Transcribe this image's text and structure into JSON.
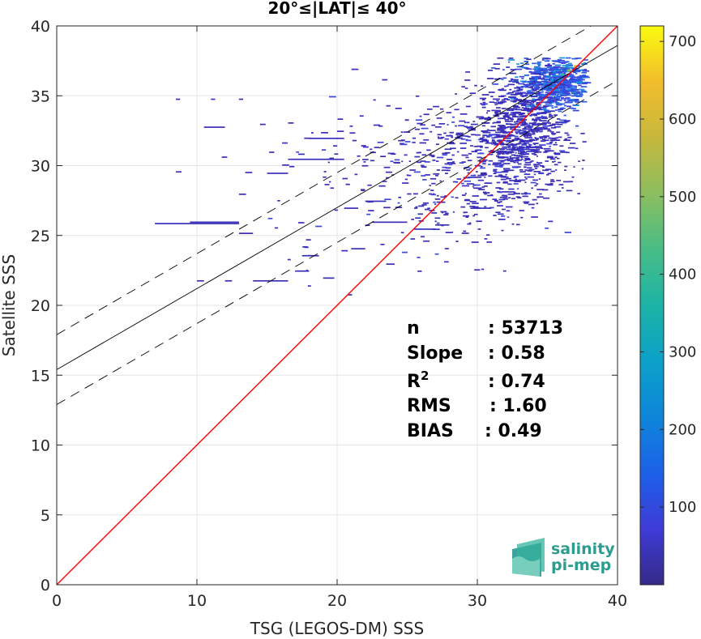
{
  "chart_data": {
    "type": "heatmap",
    "title": "20°≤|LAT|≤ 40°",
    "xlabel": "TSG (LEGOS-DM) SSS",
    "ylabel": "Satellite SSS",
    "xlim": [
      0,
      40
    ],
    "ylim": [
      0,
      40
    ],
    "xticks": [
      "0",
      "10",
      "20",
      "30",
      "40"
    ],
    "yticks": [
      "0",
      "5",
      "10",
      "15",
      "20",
      "25",
      "30",
      "35",
      "40"
    ],
    "grid": true,
    "colorbar": {
      "range": [
        0,
        720
      ],
      "ticks": [
        "100",
        "200",
        "300",
        "400",
        "500",
        "600",
        "700"
      ],
      "colormap": "parula"
    },
    "lines": {
      "identity": {
        "slope": 1,
        "intercept": 0,
        "color": "#ff0000"
      },
      "fit": {
        "slope": 0.58,
        "intercept": 15.4,
        "color": "#000000"
      },
      "fit_upper": {
        "slope": 0.58,
        "intercept": 17.9,
        "color": "#000000",
        "style": "dashed"
      },
      "fit_lower": {
        "slope": 0.58,
        "intercept": 12.9,
        "color": "#000000",
        "style": "dashed"
      }
    },
    "stats": [
      {
        "label": "n",
        "value": ": 53713"
      },
      {
        "label": "Slope",
        "value": ": 0.58"
      },
      {
        "label": "R",
        "sup": "2",
        "value": ": 0.74"
      },
      {
        "label": "RMS",
        "value": ": 1.60"
      },
      {
        "label": "BIAS",
        "value": ": 0.49"
      }
    ],
    "clusters": [
      {
        "cx": 35.5,
        "cy": 36.0,
        "sx": 1.3,
        "sy": 0.9,
        "n": 700,
        "hot": true
      },
      {
        "cx": 33.0,
        "cy": 32.5,
        "sx": 1.6,
        "sy": 2.0,
        "n": 750,
        "hot": false
      },
      {
        "cx": 30.0,
        "cy": 30.0,
        "sx": 3.0,
        "sy": 2.4,
        "n": 380,
        "hot": false
      },
      {
        "cx": 24.0,
        "cy": 29.0,
        "sx": 4.5,
        "sy": 3.2,
        "n": 160,
        "hot": false
      }
    ],
    "segments": [
      {
        "x": 7.0,
        "y": 25.9,
        "len": 6.0
      },
      {
        "x": 9.5,
        "y": 26.0,
        "len": 3.5
      },
      {
        "x": 13.0,
        "y": 25.2,
        "len": 1.0
      },
      {
        "x": 14.0,
        "y": 21.8,
        "len": 2.5
      },
      {
        "x": 19.0,
        "y": 22.0,
        "len": 0.8
      },
      {
        "x": 10.0,
        "y": 21.8,
        "len": 0.5
      },
      {
        "x": 12.0,
        "y": 21.8,
        "len": 0.5
      },
      {
        "x": 17.0,
        "y": 22.5,
        "len": 1.0
      },
      {
        "x": 17.5,
        "y": 23.6,
        "len": 1.2
      },
      {
        "x": 21.0,
        "y": 24.1,
        "len": 1.0
      },
      {
        "x": 16.5,
        "y": 30.5,
        "len": 4.0
      },
      {
        "x": 18.0,
        "y": 32.0,
        "len": 2.5
      },
      {
        "x": 8.5,
        "y": 34.8,
        "len": 0.3
      },
      {
        "x": 11.0,
        "y": 34.8,
        "len": 0.3
      },
      {
        "x": 13.0,
        "y": 34.8,
        "len": 0.3
      },
      {
        "x": 10.5,
        "y": 32.8,
        "len": 1.5
      },
      {
        "x": 14.5,
        "y": 33.0,
        "len": 0.4
      },
      {
        "x": 16.5,
        "y": 33.1,
        "len": 0.4
      },
      {
        "x": 8.5,
        "y": 29.6,
        "len": 0.4
      },
      {
        "x": 15.0,
        "y": 29.5,
        "len": 1.5
      },
      {
        "x": 13.0,
        "y": 28.0,
        "len": 0.5
      },
      {
        "x": 22.5,
        "y": 26.0,
        "len": 2.5
      },
      {
        "x": 25.5,
        "y": 25.5,
        "len": 1.5
      },
      {
        "x": 27.0,
        "y": 25.8,
        "len": 1.0
      },
      {
        "x": 29.5,
        "y": 27.0,
        "len": 1.5
      },
      {
        "x": 31.5,
        "y": 26.2,
        "len": 0.5
      },
      {
        "x": 20.5,
        "y": 27.0,
        "len": 1.0
      },
      {
        "x": 22.0,
        "y": 27.5,
        "len": 1.5
      },
      {
        "x": 23.5,
        "y": 23.0,
        "len": 0.6
      }
    ]
  },
  "logo": {
    "line1": "salinity",
    "line2": "pi-mep"
  }
}
